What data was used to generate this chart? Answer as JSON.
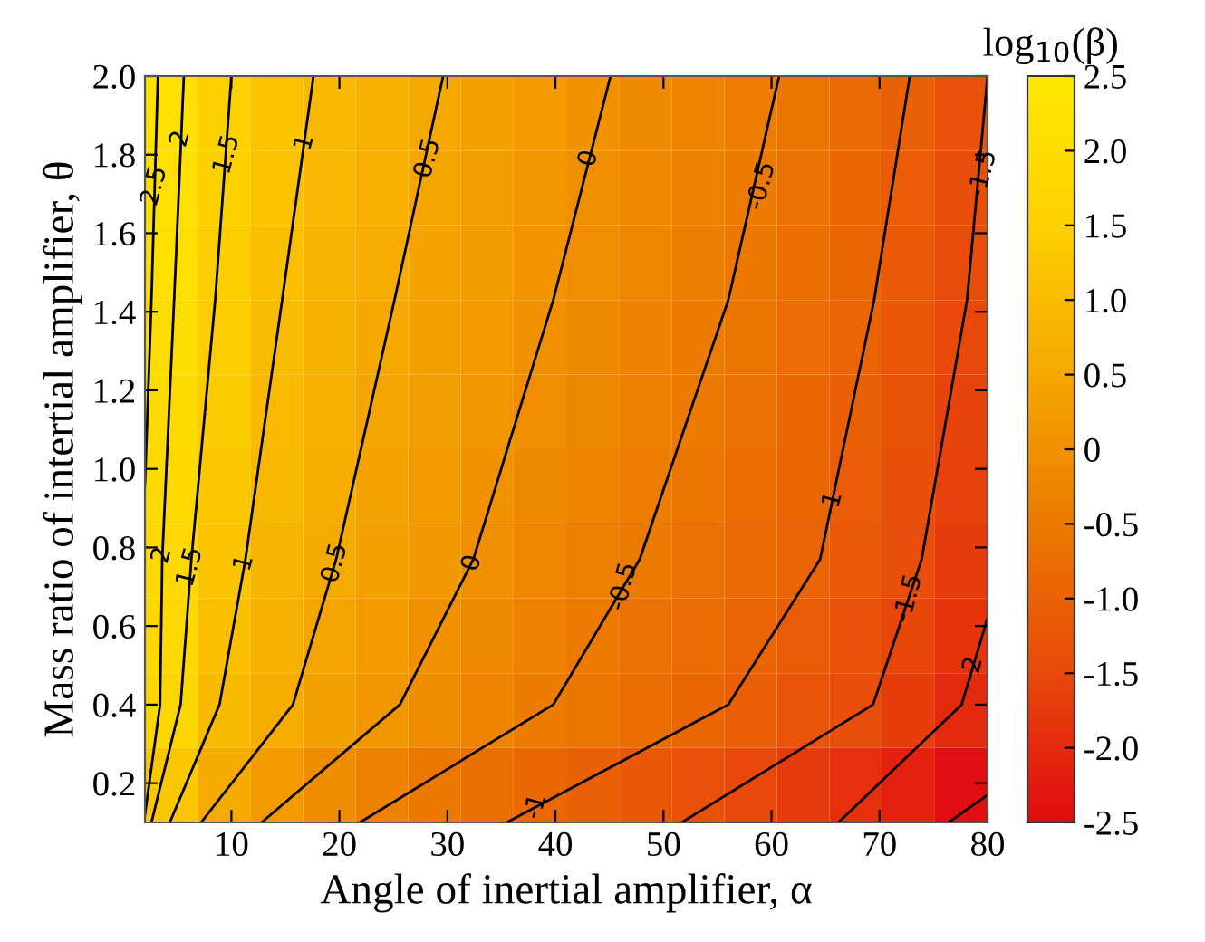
{
  "chart_data": {
    "type": "heatmap",
    "xlabel": "Angle of inertial amplifier, α",
    "ylabel": "Mass ratio of intertial amplifier, θ",
    "clabel": "log$_{10}$(β)",
    "x": [
      4.44,
      9.31,
      14.19,
      19.06,
      23.94,
      28.81,
      33.69,
      38.56,
      43.44,
      48.31,
      53.19,
      58.06,
      62.94,
      67.81,
      72.69,
      77.56
    ],
    "y": [
      1.905,
      1.715,
      1.525,
      1.335,
      1.145,
      0.955,
      0.765,
      0.575,
      0.385,
      0.195
    ],
    "xlim": [
      2,
      80
    ],
    "ylim": [
      0.1,
      2.0
    ],
    "xticks": [
      10,
      20,
      30,
      40,
      50,
      60,
      70,
      80
    ],
    "yticks": [
      0.2,
      0.4,
      0.6,
      0.8,
      {
        "value": 1.0,
        "label": "1.0"
      },
      1.2,
      1.4,
      1.6,
      1.8,
      {
        "value": 2.0,
        "label": "2.0"
      }
    ],
    "clim": [
      -2.5,
      2.5
    ],
    "cticks": [
      {
        "value": 2.5,
        "label": "2.5"
      },
      {
        "value": 2.0,
        "label": "2.0"
      },
      {
        "value": 1.5,
        "label": "1.5"
      },
      {
        "value": 1.0,
        "label": "1.0"
      },
      {
        "value": 0.5,
        "label": "0.5"
      },
      {
        "value": 0,
        "label": "0"
      },
      {
        "value": -0.5,
        "label": "-0.5"
      },
      {
        "value": -1.0,
        "label": "-1.0"
      },
      {
        "value": -1.5,
        "label": "-1.5"
      },
      {
        "value": -2.0,
        "label": "-2.0"
      },
      {
        "value": -2.5,
        "label": "-2.5"
      }
    ],
    "cells": [
      [
        2.21,
        1.55,
        1.2,
        0.92,
        0.71,
        0.5,
        0.34,
        0.18,
        0.02,
        -0.13,
        -0.29,
        -0.44,
        -0.62,
        -0.82,
        -1.03,
        -1.34
      ],
      [
        2.16,
        1.5,
        1.14,
        0.87,
        0.65,
        0.45,
        0.29,
        0.13,
        -0.03,
        -0.18,
        -0.34,
        -0.49,
        -0.68,
        -0.87,
        -1.1,
        -1.41
      ],
      [
        2.1,
        1.46,
        1.08,
        0.82,
        0.59,
        0.4,
        0.24,
        0.07,
        -0.09,
        -0.24,
        -0.39,
        -0.55,
        -0.73,
        -0.91,
        -1.16,
        -1.45
      ],
      [
        2.03,
        1.41,
        1.0,
        0.76,
        0.52,
        0.35,
        0.18,
        0.01,
        -0.14,
        -0.3,
        -0.45,
        -0.61,
        -0.79,
        -0.96,
        -1.22,
        -1.51
      ],
      [
        1.97,
        1.35,
        0.95,
        0.7,
        0.46,
        0.28,
        0.11,
        -0.06,
        -0.22,
        -0.37,
        -0.52,
        -0.69,
        -0.85,
        -1.03,
        -1.3,
        -1.59
      ],
      [
        1.91,
        1.28,
        0.89,
        0.62,
        0.4,
        0.21,
        0.03,
        -0.13,
        -0.28,
        -0.44,
        -0.6,
        -0.75,
        -0.91,
        -1.1,
        -1.37,
        -1.66
      ],
      [
        1.84,
        1.2,
        0.83,
        0.54,
        0.33,
        0.14,
        -0.04,
        -0.2,
        -0.36,
        -0.52,
        -0.66,
        -0.81,
        -0.95,
        -1.18,
        -1.44,
        -1.73
      ],
      [
        1.8,
        1.08,
        0.72,
        0.43,
        0.22,
        0.0,
        -0.17,
        -0.33,
        -0.5,
        -0.65,
        -0.79,
        -0.94,
        -1.13,
        -1.34,
        -1.57,
        -1.87
      ],
      [
        1.73,
        0.97,
        0.61,
        0.33,
        0.08,
        -0.11,
        -0.28,
        -0.46,
        -0.61,
        -0.76,
        -0.91,
        -1.08,
        -1.26,
        -1.44,
        -1.7,
        -2.0
      ],
      [
        1.3,
        0.57,
        0.19,
        -0.1,
        -0.33,
        -0.54,
        -0.71,
        -0.88,
        -1.04,
        -1.2,
        -1.36,
        -1.53,
        -1.72,
        -1.92,
        -2.16,
        -2.45
      ]
    ],
    "series": [
      {
        "type": "line",
        "color": "#000000",
        "x": [
          2.0,
          2.6,
          3.2
        ],
        "values": [
          0.96,
          1.43,
          2.0
        ]
      },
      {
        "type": "line",
        "color": "#000000",
        "x": [
          2.0,
          3.4,
          3.6,
          4.7,
          5.6
        ],
        "values": [
          0.12,
          0.4,
          0.77,
          1.43,
          2.0
        ]
      },
      {
        "type": "line",
        "color": "#000000",
        "x": [
          2.6,
          5.3,
          6.3,
          8.5,
          10.0
        ],
        "values": [
          0.1,
          0.4,
          0.77,
          1.43,
          2.0
        ]
      },
      {
        "type": "line",
        "color": "#000000",
        "x": [
          4.3,
          8.9,
          11.3,
          14.7,
          17.6
        ],
        "values": [
          0.1,
          0.4,
          0.77,
          1.43,
          2.0
        ]
      },
      {
        "type": "line",
        "color": "#000000",
        "x": [
          7.2,
          15.7,
          19.7,
          25.1,
          29.6
        ],
        "values": [
          0.1,
          0.4,
          0.77,
          1.43,
          2.0
        ]
      },
      {
        "type": "line",
        "color": "#000000",
        "x": [
          12.8,
          25.6,
          32.4,
          39.8,
          45.1
        ],
        "values": [
          0.1,
          0.4,
          0.77,
          1.43,
          2.0
        ]
      },
      {
        "type": "line",
        "color": "#000000",
        "x": [
          21.9,
          39.8,
          47.8,
          56.0,
          60.7
        ],
        "values": [
          0.1,
          0.4,
          0.77,
          1.43,
          2.0
        ]
      },
      {
        "type": "line",
        "color": "#000000",
        "x": [
          35.5,
          56.0,
          64.5,
          69.5,
          72.8
        ],
        "values": [
          0.1,
          0.4,
          0.77,
          1.43,
          2.0
        ]
      },
      {
        "type": "line",
        "color": "#000000",
        "x": [
          51.7,
          69.4,
          73.9,
          78.1,
          80.0
        ],
        "values": [
          0.1,
          0.4,
          0.77,
          1.43,
          2.0
        ]
      },
      {
        "type": "line",
        "color": "#000000",
        "x": [
          66.2,
          77.6,
          80.0
        ],
        "values": [
          0.1,
          0.4,
          0.62
        ]
      },
      {
        "type": "line",
        "color": "#000000",
        "x": [
          76.4,
          80.0
        ],
        "values": [
          0.1,
          0.17
        ]
      }
    ],
    "annotations": [
      {
        "text": "2.5",
        "x": 2.9,
        "y": 1.72
      },
      {
        "text": "2",
        "x": 5.3,
        "y": 1.84
      },
      {
        "text": "1.5",
        "x": 9.6,
        "y": 1.8
      },
      {
        "text": "1",
        "x": 16.8,
        "y": 1.83
      },
      {
        "text": "0.5",
        "x": 28.2,
        "y": 1.79
      },
      {
        "text": "0",
        "x": 43.1,
        "y": 1.79
      },
      {
        "text": "-0.5",
        "x": 59.1,
        "y": 1.72
      },
      {
        "text": "-1.5",
        "x": 79.6,
        "y": 1.75
      },
      {
        "text": "2",
        "x": 3.6,
        "y": 0.78
      },
      {
        "text": "1.5",
        "x": 6.2,
        "y": 0.75
      },
      {
        "text": "1",
        "x": 11.2,
        "y": 0.76
      },
      {
        "text": "0.5",
        "x": 19.6,
        "y": 0.76
      },
      {
        "text": "0",
        "x": 32.3,
        "y": 0.76
      },
      {
        "text": "-0.5",
        "x": 46.3,
        "y": 0.7
      },
      {
        "text": "-1",
        "x": 65.6,
        "y": 0.91
      },
      {
        "text": "-1.5",
        "x": 72.7,
        "y": 0.67
      },
      {
        "text": "-2",
        "x": 78.6,
        "y": 0.49
      },
      {
        "text": "-1",
        "x": 38.2,
        "y": 0.14
      }
    ]
  }
}
